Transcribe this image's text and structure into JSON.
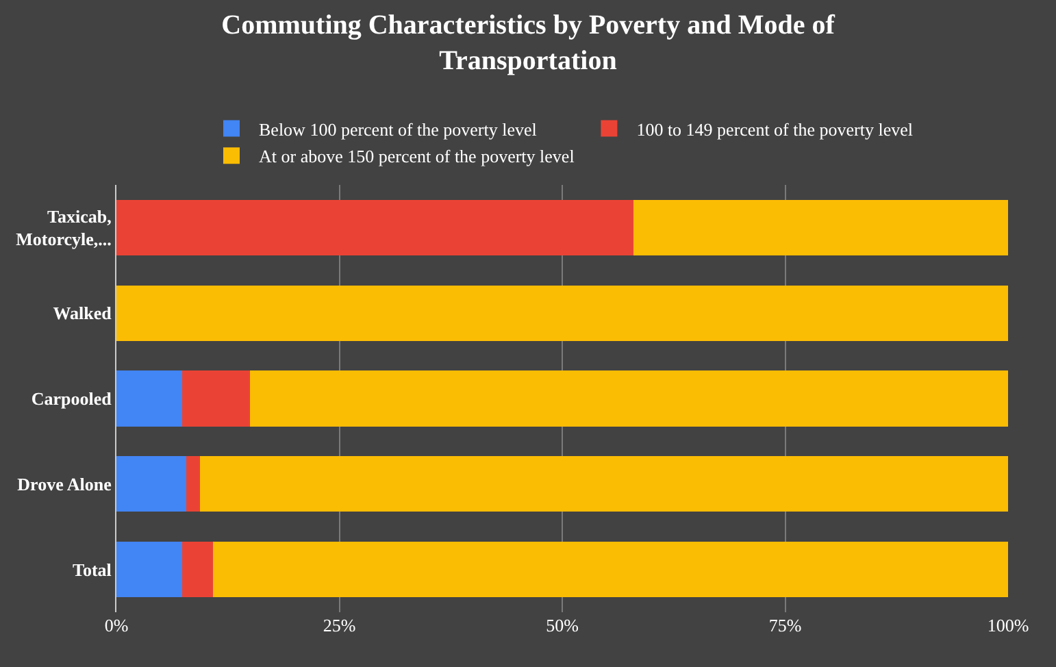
{
  "chart_data": {
    "type": "bar",
    "orientation": "horizontal",
    "stacked": true,
    "title": "Commuting Characteristics by Poverty and Mode of\nTransportation",
    "categories": [
      "Taxicab,\nMotorcyle,...",
      "Walked",
      "Carpooled",
      "Drove Alone",
      "Total"
    ],
    "series": [
      {
        "name": "Below 100 percent of the poverty level",
        "color": "#4285f4",
        "values": [
          0,
          0,
          7.4,
          7.8,
          7.4
        ]
      },
      {
        "name": "100 to 149 percent of the poverty level",
        "color": "#ea4335",
        "values": [
          58,
          0,
          7.6,
          1.6,
          3.4
        ]
      },
      {
        "name": "At or above 150 percent of the poverty level",
        "color": "#fbbc04",
        "values": [
          42,
          100,
          85,
          90.6,
          89.2
        ]
      }
    ],
    "xlim": [
      0,
      100
    ],
    "xticks": [
      {
        "value": 0,
        "label": "0%"
      },
      {
        "value": 25,
        "label": "25%"
      },
      {
        "value": 50,
        "label": "50%"
      },
      {
        "value": 75,
        "label": "75%"
      },
      {
        "value": 100,
        "label": "100%"
      }
    ],
    "grid": "x",
    "legend": "top"
  }
}
